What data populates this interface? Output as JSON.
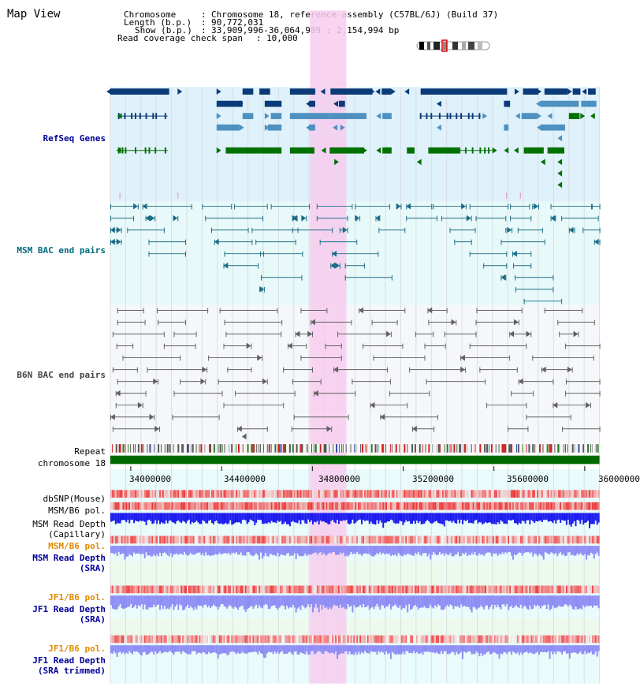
{
  "header": {
    "title": "Map View",
    "chromosome_key": "Chromosome",
    "chromosome_value": "Chromosome 18, reference assembly (C57BL/6J) (Build 37)",
    "length_key": "Length (b.p.)",
    "length_value": "90,772,031",
    "show_key": "Show (b.p.)",
    "show_value": "33,909,996-36,064,989 : 2,154,994 bp",
    "coverage_key": "Read coverage check span",
    "coverage_value": "10,000"
  },
  "tracks": {
    "refseq": "RefSeq Genes",
    "msm_bac": "MSM BAC end pairs",
    "b6n_bac": "B6N BAC end pairs",
    "repeat": "Repeat",
    "chromosome": "chromosome 18",
    "dbsnp": "dbSNP(Mouse)",
    "msm_b6_pol_1": "MSM/B6 pol.",
    "msm_read_depth_cap_1": "MSM Read Depth",
    "msm_read_depth_cap_2": "(Capillary)",
    "msm_b6_pol_2": "MSM/B6 pol.",
    "msm_read_depth_sra_1": "MSM Read Depth",
    "msm_read_depth_sra_2": "(SRA)",
    "jf1_b6_pol_1": "JF1/B6 pol.",
    "jf1_read_depth_sra_1": "JF1 Read Depth",
    "jf1_read_depth_sra_2": "(SRA)",
    "jf1_b6_pol_2": "JF1/B6 pol.",
    "jf1_read_depth_trim_1": "JF1 Read Depth",
    "jf1_read_depth_trim_2": "(SRA trimmed)"
  },
  "axis": {
    "ticks": [
      "34000000",
      "34400000",
      "34800000",
      "35200000",
      "35600000",
      "36000000"
    ],
    "tick_values": [
      34000000,
      34400000,
      34800000,
      35200000,
      35600000,
      36000000
    ],
    "range": [
      33909996,
      36064989
    ]
  },
  "highlight": {
    "start": 34790000,
    "end": 34950000,
    "color": "#f7cdee"
  },
  "colors": {
    "refseq_dark": "#0a3a78",
    "refseq_light": "#4e91c0",
    "refseq_green": "#007000",
    "msm_bac": "#1a6c86",
    "b6n_bac": "#606060",
    "chromosome": "#006a00",
    "depth_blue": "#1a1aee",
    "depth_light": "#8d8df5",
    "pol_red": "#e83030"
  }
}
